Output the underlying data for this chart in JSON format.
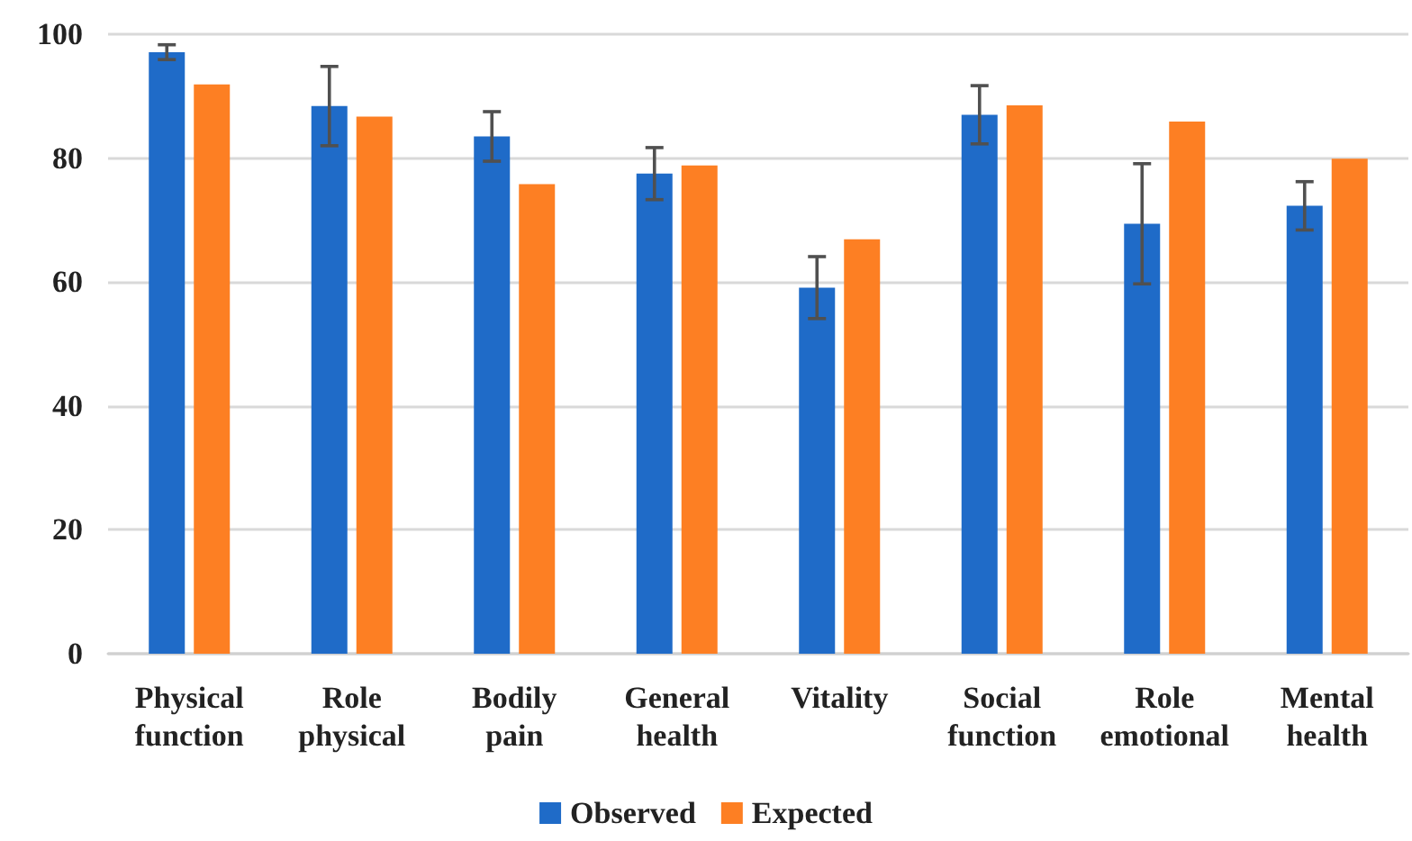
{
  "chart_data": {
    "type": "bar",
    "categories": [
      "Physical\nfunction",
      "Role\nphysical",
      "Bodily\npain",
      "General\nhealth",
      "Vitality",
      "Social\nfunction",
      "Role\nemotional",
      "Mental\nhealth"
    ],
    "series": [
      {
        "name": "Observed",
        "color": "#1f6bc8",
        "values": [
          97.1,
          88.4,
          83.5,
          77.5,
          59.1,
          87.0,
          69.4,
          72.3
        ],
        "errors": [
          1.2,
          6.4,
          4.0,
          4.2,
          5.0,
          4.7,
          9.7,
          3.9
        ]
      },
      {
        "name": "Expected",
        "color": "#fd7f23",
        "values": [
          91.9,
          86.7,
          75.8,
          78.8,
          66.9,
          88.5,
          85.9,
          79.9
        ]
      }
    ],
    "ylim": [
      0,
      100
    ],
    "yticks": [
      0,
      20,
      40,
      60,
      80,
      100
    ],
    "grid": "y",
    "legend": "bottom"
  }
}
